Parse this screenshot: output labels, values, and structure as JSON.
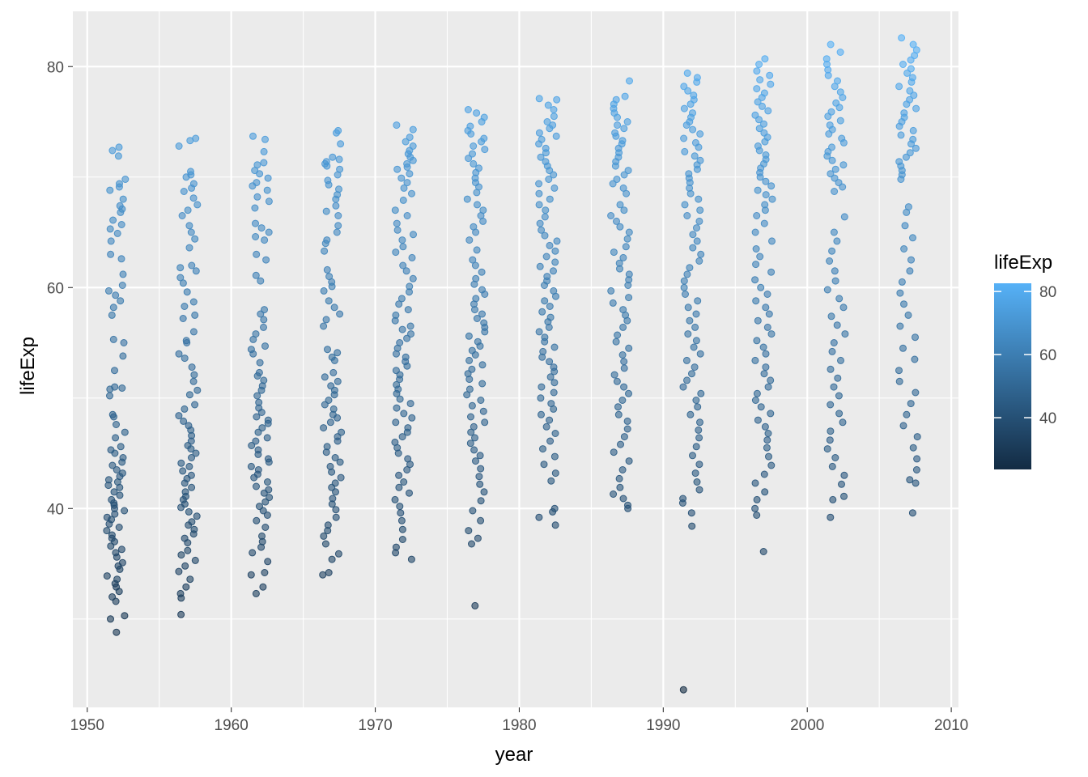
{
  "chart_data": {
    "type": "scatter",
    "title": "",
    "xlabel": "year",
    "ylabel": "lifeExp",
    "xlim": [
      1949,
      2010.5
    ],
    "ylim": [
      22,
      85
    ],
    "x_ticks": [
      1950,
      1960,
      1970,
      1980,
      1990,
      2000,
      2010
    ],
    "y_ticks": [
      40,
      60,
      80
    ],
    "grid": true,
    "jitter": true,
    "point_alpha": 0.6,
    "legend": {
      "title": "lifeExp",
      "position": "right",
      "type": "colorbar",
      "range": [
        23.6,
        82.6
      ],
      "ticks": [
        40,
        60,
        80
      ],
      "low_color": "#132B43",
      "high_color": "#56B1F7"
    },
    "colors": {
      "panel_background": "#EBEBEB",
      "grid": "#FFFFFF"
    },
    "groups": [
      {
        "year": 1952,
        "lifeExp": [
          72.7,
          72.4,
          71.9,
          69.8,
          69.4,
          69.1,
          68.8,
          68.0,
          67.4,
          67.1,
          66.8,
          66.1,
          65.7,
          65.3,
          64.9,
          64.2,
          63.0,
          62.6,
          61.2,
          60.2,
          59.7,
          59.3,
          58.8,
          58.2,
          57.5,
          55.3,
          55.0,
          53.8,
          52.5,
          51.0,
          50.9,
          50.8,
          50.2,
          48.5,
          48.3,
          47.6,
          46.9,
          46.4,
          45.6,
          45.3,
          45.0,
          44.6,
          44.2,
          43.9,
          43.5,
          43.2,
          42.9,
          42.6,
          42.4,
          42.1,
          41.9,
          41.5,
          41.2,
          40.8,
          40.5,
          40.3,
          40.0,
          39.8,
          39.5,
          39.2,
          39.0,
          38.6,
          38.3,
          38.0,
          37.6,
          37.3,
          37.0,
          36.6,
          36.3,
          36.0,
          35.6,
          35.1,
          34.8,
          34.5,
          33.9,
          33.6,
          33.2,
          32.9,
          32.5,
          32.0,
          31.6,
          30.3,
          30.0,
          28.8
        ]
      },
      {
        "year": 1957,
        "lifeExp": [
          73.5,
          73.3,
          72.8,
          70.5,
          70.2,
          70.0,
          69.4,
          69.0,
          68.7,
          68.1,
          67.5,
          67.0,
          66.5,
          65.6,
          65.0,
          64.4,
          63.6,
          62.0,
          61.8,
          61.5,
          60.9,
          60.4,
          59.6,
          58.7,
          58.3,
          57.5,
          57.2,
          56.0,
          55.2,
          55.0,
          54.0,
          53.6,
          52.8,
          52.1,
          51.5,
          50.7,
          50.3,
          49.4,
          49.0,
          48.4,
          47.9,
          47.5,
          47.1,
          46.6,
          46.1,
          45.7,
          45.4,
          45.0,
          44.6,
          44.1,
          43.8,
          43.4,
          43.0,
          42.7,
          42.3,
          41.9,
          41.5,
          41.1,
          40.8,
          40.4,
          40.1,
          39.7,
          39.3,
          38.8,
          38.5,
          38.1,
          37.7,
          37.3,
          36.9,
          36.2,
          35.8,
          35.3,
          34.8,
          34.3,
          33.6,
          32.9,
          32.3,
          31.9,
          30.4
        ]
      },
      {
        "year": 1962,
        "lifeExp": [
          73.7,
          73.4,
          72.3,
          71.3,
          71.1,
          70.6,
          70.3,
          69.9,
          69.5,
          69.2,
          68.8,
          68.2,
          67.8,
          67.2,
          65.8,
          65.4,
          65.0,
          64.6,
          64.3,
          63.0,
          62.5,
          61.1,
          60.6,
          58.0,
          57.6,
          57.1,
          56.4,
          55.8,
          55.3,
          54.7,
          54.4,
          54.0,
          53.2,
          52.3,
          52.0,
          51.6,
          51.1,
          50.7,
          50.2,
          49.6,
          49.1,
          48.7,
          48.3,
          48.0,
          47.7,
          47.3,
          46.9,
          46.4,
          46.1,
          45.7,
          45.3,
          44.9,
          44.5,
          44.2,
          43.8,
          43.5,
          43.1,
          42.8,
          42.4,
          42.0,
          41.7,
          41.4,
          41.0,
          40.6,
          40.2,
          39.8,
          39.4,
          38.9,
          38.3,
          37.5,
          37.0,
          36.5,
          36.0,
          35.2,
          34.2,
          34.0,
          32.9,
          32.3
        ]
      },
      {
        "year": 1967,
        "lifeExp": [
          74.2,
          74.0,
          73.0,
          71.8,
          71.6,
          71.4,
          71.2,
          71.0,
          70.7,
          70.2,
          69.7,
          69.3,
          68.9,
          68.4,
          68.0,
          67.4,
          66.9,
          66.5,
          65.6,
          65.0,
          64.3,
          64.0,
          63.3,
          61.6,
          61.0,
          60.5,
          60.1,
          59.7,
          58.8,
          58.2,
          57.6,
          57.1,
          56.5,
          54.4,
          54.1,
          53.7,
          53.4,
          52.3,
          51.9,
          51.5,
          51.1,
          50.7,
          50.3,
          49.8,
          49.4,
          49.0,
          48.5,
          48.2,
          47.8,
          47.3,
          46.9,
          46.5,
          46.1,
          45.6,
          45.1,
          44.6,
          44.2,
          43.8,
          43.3,
          42.8,
          42.3,
          41.9,
          41.5,
          40.9,
          40.4,
          39.9,
          39.2,
          38.5,
          38.0,
          37.5,
          36.8,
          35.9,
          35.4,
          34.2,
          34.0
        ]
      },
      {
        "year": 1972,
        "lifeExp": [
          74.7,
          74.3,
          73.6,
          73.2,
          72.8,
          72.4,
          72.1,
          71.8,
          71.5,
          71.2,
          70.9,
          70.7,
          70.3,
          69.9,
          69.5,
          69.0,
          68.5,
          67.9,
          67.0,
          66.5,
          65.8,
          65.2,
          64.8,
          64.3,
          63.7,
          63.2,
          62.7,
          62.0,
          61.5,
          60.8,
          60.1,
          59.6,
          59.0,
          58.5,
          58.0,
          57.5,
          57.0,
          56.5,
          56.2,
          55.8,
          55.4,
          55.0,
          54.5,
          54.0,
          53.7,
          53.3,
          52.9,
          52.5,
          52.1,
          51.7,
          51.2,
          50.8,
          50.4,
          49.9,
          49.5,
          49.1,
          48.6,
          48.2,
          47.8,
          47.3,
          46.9,
          46.5,
          46.0,
          45.5,
          45.0,
          44.5,
          44.0,
          43.5,
          43.0,
          42.4,
          41.9,
          41.4,
          40.8,
          40.2,
          39.6,
          38.9,
          38.1,
          37.2,
          36.5,
          36.0,
          35.4
        ]
      },
      {
        "year": 1977,
        "lifeExp": [
          76.1,
          75.8,
          75.4,
          75.0,
          74.6,
          74.2,
          73.9,
          73.5,
          73.2,
          72.8,
          72.5,
          72.1,
          71.7,
          71.2,
          70.8,
          70.4,
          69.9,
          69.5,
          69.1,
          68.6,
          68.0,
          67.5,
          67.0,
          66.5,
          66.0,
          65.5,
          65.0,
          64.3,
          63.4,
          62.5,
          62.0,
          61.4,
          60.8,
          60.3,
          59.8,
          59.4,
          59.0,
          58.5,
          58.0,
          57.6,
          57.2,
          56.8,
          56.4,
          56.0,
          55.6,
          55.1,
          54.7,
          54.3,
          53.9,
          53.4,
          53.0,
          52.6,
          52.2,
          51.7,
          51.3,
          50.8,
          50.3,
          49.8,
          49.3,
          48.8,
          48.3,
          47.8,
          47.4,
          46.9,
          46.4,
          45.9,
          45.3,
          44.8,
          44.3,
          43.6,
          42.9,
          42.2,
          41.5,
          40.7,
          39.8,
          38.9,
          38.0,
          37.3,
          36.8,
          31.2
        ]
      },
      {
        "year": 1982,
        "lifeExp": [
          77.1,
          77.0,
          76.5,
          76.1,
          75.5,
          75.0,
          74.7,
          74.4,
          74.0,
          73.7,
          73.4,
          73.0,
          72.6,
          72.2,
          71.8,
          71.4,
          71.0,
          70.6,
          70.2,
          69.8,
          69.4,
          69.0,
          68.5,
          68.0,
          67.5,
          67.0,
          66.4,
          65.8,
          65.2,
          64.7,
          64.2,
          63.8,
          63.3,
          62.8,
          62.3,
          61.9,
          61.5,
          61.0,
          60.6,
          60.2,
          59.7,
          59.2,
          58.8,
          58.3,
          57.8,
          57.3,
          56.9,
          56.4,
          56.0,
          55.5,
          55.1,
          54.6,
          54.2,
          53.7,
          53.3,
          52.8,
          52.4,
          51.9,
          51.4,
          51.0,
          50.5,
          50.0,
          49.5,
          49.0,
          48.5,
          48.0,
          47.4,
          46.8,
          46.1,
          45.4,
          44.7,
          44.0,
          43.2,
          42.5,
          40.0,
          39.7,
          39.2,
          38.5
        ]
      },
      {
        "year": 1987,
        "lifeExp": [
          78.7,
          77.3,
          77.0,
          76.6,
          76.2,
          75.8,
          75.4,
          75.0,
          74.7,
          74.4,
          74.0,
          73.7,
          73.3,
          73.0,
          72.6,
          72.2,
          71.8,
          71.4,
          71.0,
          70.6,
          70.2,
          69.8,
          69.4,
          69.0,
          68.5,
          67.5,
          67.0,
          66.5,
          66.0,
          65.5,
          65.0,
          64.4,
          63.7,
          63.2,
          62.7,
          62.2,
          61.7,
          61.2,
          60.7,
          60.2,
          59.7,
          59.1,
          58.6,
          58.0,
          57.5,
          57.0,
          56.4,
          55.7,
          55.1,
          54.5,
          53.9,
          53.3,
          52.7,
          52.1,
          51.5,
          51.0,
          50.4,
          49.8,
          49.2,
          48.5,
          47.9,
          47.2,
          46.5,
          45.8,
          45.1,
          44.3,
          43.5,
          42.7,
          41.9,
          41.3,
          40.9,
          40.3,
          40.0
        ]
      },
      {
        "year": 1992,
        "lifeExp": [
          79.4,
          79.0,
          78.6,
          78.2,
          77.8,
          77.4,
          77.0,
          76.6,
          76.2,
          75.8,
          75.4,
          75.0,
          74.7,
          74.3,
          73.9,
          73.5,
          73.1,
          72.7,
          72.3,
          71.9,
          71.5,
          71.1,
          70.7,
          70.3,
          69.9,
          69.5,
          69.0,
          68.5,
          68.0,
          67.5,
          67.0,
          66.5,
          66.0,
          65.4,
          64.8,
          64.2,
          63.6,
          63.0,
          62.4,
          61.8,
          61.2,
          60.6,
          60.0,
          59.4,
          58.8,
          58.2,
          57.6,
          57.0,
          56.4,
          55.8,
          55.2,
          54.6,
          54.0,
          53.4,
          52.8,
          52.2,
          51.6,
          51.0,
          50.4,
          49.8,
          49.2,
          48.5,
          47.8,
          47.1,
          46.4,
          45.6,
          44.8,
          44.0,
          43.2,
          42.4,
          41.7,
          40.9,
          40.5,
          39.6,
          38.4,
          23.6
        ]
      },
      {
        "year": 1997,
        "lifeExp": [
          80.7,
          80.2,
          79.6,
          79.2,
          78.8,
          78.4,
          78.0,
          77.6,
          77.2,
          76.8,
          76.4,
          76.0,
          75.6,
          75.2,
          74.8,
          74.4,
          74.0,
          73.6,
          73.2,
          72.8,
          72.4,
          72.0,
          71.6,
          71.2,
          70.8,
          70.4,
          70.0,
          69.6,
          69.2,
          68.8,
          68.4,
          68.0,
          67.5,
          67.0,
          66.5,
          65.8,
          65.0,
          64.2,
          63.5,
          62.8,
          62.1,
          61.4,
          60.7,
          60.0,
          59.4,
          58.8,
          58.2,
          57.6,
          57.0,
          56.4,
          55.8,
          55.2,
          54.6,
          54.0,
          53.4,
          52.8,
          52.2,
          51.6,
          51.0,
          50.4,
          49.8,
          49.2,
          48.6,
          48.0,
          47.4,
          46.8,
          46.2,
          45.5,
          44.7,
          43.9,
          43.1,
          42.3,
          41.5,
          40.8,
          40.0,
          39.4,
          36.1
        ]
      },
      {
        "year": 2002,
        "lifeExp": [
          82.0,
          81.3,
          80.7,
          80.2,
          79.7,
          79.2,
          78.7,
          78.2,
          77.7,
          77.2,
          76.7,
          76.3,
          75.9,
          75.5,
          75.1,
          74.7,
          74.3,
          73.9,
          73.5,
          73.1,
          72.7,
          72.3,
          71.9,
          71.5,
          71.1,
          70.7,
          70.3,
          69.9,
          69.5,
          69.1,
          68.7,
          66.4,
          65.0,
          64.2,
          63.3,
          62.4,
          61.5,
          60.6,
          59.8,
          59.0,
          58.2,
          57.4,
          56.6,
          55.8,
          55.0,
          54.2,
          53.4,
          52.6,
          51.8,
          51.0,
          50.2,
          49.4,
          48.6,
          47.8,
          47.0,
          46.2,
          45.4,
          44.6,
          43.8,
          43.0,
          42.2,
          41.1,
          40.8,
          39.2
        ]
      },
      {
        "year": 2007,
        "lifeExp": [
          82.6,
          82.0,
          81.5,
          81.0,
          80.6,
          80.2,
          79.8,
          79.4,
          79.0,
          78.6,
          78.2,
          77.8,
          77.4,
          77.0,
          76.6,
          76.2,
          75.8,
          75.4,
          75.0,
          74.6,
          74.2,
          73.8,
          73.4,
          73.0,
          72.6,
          72.2,
          71.8,
          71.4,
          71.0,
          70.6,
          70.2,
          69.8,
          67.3,
          66.8,
          65.6,
          64.5,
          63.5,
          62.5,
          61.5,
          60.5,
          59.5,
          58.5,
          57.5,
          56.5,
          55.5,
          54.5,
          53.5,
          52.5,
          51.5,
          50.5,
          49.5,
          48.5,
          47.5,
          46.5,
          45.5,
          44.5,
          43.5,
          42.6,
          42.3,
          39.6
        ]
      }
    ]
  }
}
